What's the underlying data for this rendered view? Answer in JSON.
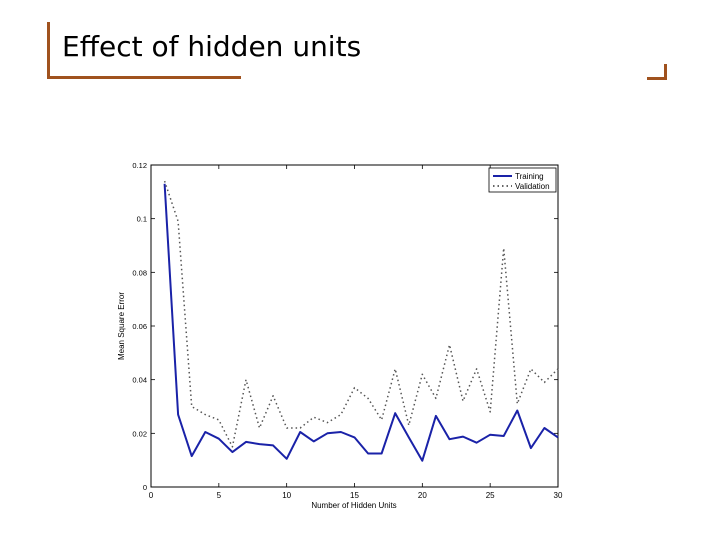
{
  "slide": {
    "title": "Effect of hidden units"
  },
  "colors": {
    "accent": "#a0521e",
    "training": "#1a22a8",
    "validation": "#555555"
  },
  "chart_data": {
    "type": "line",
    "title": "",
    "xlabel": "Number of Hidden Units",
    "ylabel": "Mean Square Error",
    "xlim": [
      0,
      30
    ],
    "ylim": [
      0,
      0.12
    ],
    "xticks": [
      0,
      5,
      10,
      15,
      20,
      25,
      30
    ],
    "yticks": [
      0,
      0.02,
      0.04,
      0.06,
      0.08,
      0.1,
      0.12
    ],
    "ytick_labels": [
      "0",
      "0.02",
      "0.04",
      "0.06",
      "0.08",
      "0.1",
      "0.12"
    ],
    "legend_position": "top-right",
    "x": [
      1,
      2,
      3,
      4,
      5,
      6,
      7,
      8,
      9,
      10,
      11,
      12,
      13,
      14,
      15,
      16,
      17,
      18,
      19,
      20,
      21,
      22,
      23,
      24,
      25,
      26,
      27,
      28,
      29,
      30
    ],
    "series": [
      {
        "name": "Training",
        "style": "solid",
        "values": [
          0.113,
          0.027,
          0.0115,
          0.0205,
          0.018,
          0.013,
          0.0168,
          0.016,
          0.0155,
          0.0105,
          0.0205,
          0.017,
          0.02,
          0.0205,
          0.0185,
          0.0125,
          0.0125,
          0.0275,
          0.0185,
          0.0098,
          0.0265,
          0.0178,
          0.0188,
          0.0165,
          0.0195,
          0.019,
          0.0285,
          0.0145,
          0.022,
          0.0185
        ]
      },
      {
        "name": "Validation",
        "style": "dotted",
        "values": [
          0.114,
          0.099,
          0.03,
          0.027,
          0.025,
          0.015,
          0.04,
          0.022,
          0.034,
          0.022,
          0.022,
          0.026,
          0.024,
          0.027,
          0.037,
          0.033,
          0.025,
          0.044,
          0.023,
          0.042,
          0.033,
          0.053,
          0.032,
          0.044,
          0.028,
          0.089,
          0.031,
          0.044,
          0.039,
          0.044
        ]
      }
    ]
  }
}
